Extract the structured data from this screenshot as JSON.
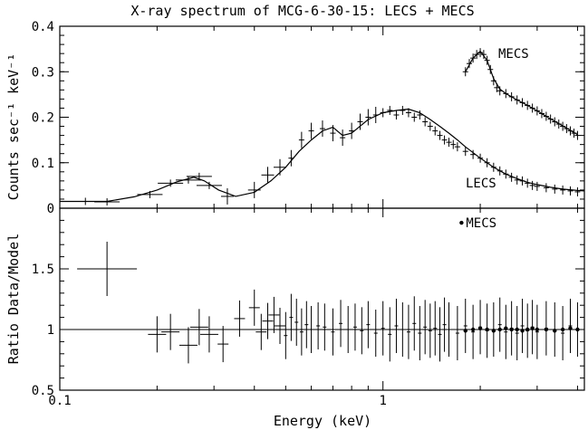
{
  "chart_data": [
    {
      "panel": "top",
      "type": "scatter",
      "title": "X-ray spectrum of MCG-6-30-15: LECS + MECS",
      "xlabel": "Energy (keV)",
      "ylabel": "Counts sec⁻¹ keV⁻¹",
      "xscale": "log",
      "xlim": [
        0.1,
        4.2
      ],
      "ylim": [
        0,
        0.4
      ],
      "xticks": [
        0.1,
        1
      ],
      "xtick_labels": [
        "0.1",
        "1"
      ],
      "yticks": [
        0,
        0.1,
        0.2,
        0.3,
        0.4
      ],
      "ytick_labels": [
        "0",
        "0.1",
        "0.2",
        "0.3",
        "0.4"
      ],
      "series": [
        {
          "name": "LECS",
          "label_text": "LECS",
          "x": [
            0.12,
            0.14,
            0.19,
            0.22,
            0.25,
            0.27,
            0.29,
            0.33,
            0.4,
            0.44,
            0.48,
            0.52,
            0.56,
            0.6,
            0.65,
            0.7,
            0.75,
            0.8,
            0.85,
            0.9,
            0.95,
            1.0,
            1.05,
            1.1,
            1.15,
            1.2,
            1.25,
            1.3,
            1.35,
            1.4,
            1.45,
            1.5,
            1.55,
            1.6,
            1.65,
            1.7,
            1.8,
            1.9,
            2.0,
            2.1,
            2.2,
            2.3,
            2.4,
            2.5,
            2.6,
            2.7,
            2.8,
            2.9,
            3.0,
            3.2,
            3.4,
            3.6,
            3.8,
            4.0
          ],
          "y": [
            0.015,
            0.014,
            0.03,
            0.055,
            0.062,
            0.07,
            0.05,
            0.026,
            0.04,
            0.073,
            0.09,
            0.11,
            0.15,
            0.17,
            0.175,
            0.165,
            0.155,
            0.17,
            0.19,
            0.2,
            0.205,
            0.21,
            0.215,
            0.205,
            0.215,
            0.21,
            0.2,
            0.205,
            0.19,
            0.18,
            0.17,
            0.16,
            0.15,
            0.145,
            0.14,
            0.135,
            0.125,
            0.118,
            0.11,
            0.1,
            0.09,
            0.082,
            0.075,
            0.068,
            0.062,
            0.06,
            0.055,
            0.05,
            0.048,
            0.045,
            0.042,
            0.04,
            0.038,
            0.036
          ],
          "model_x": [
            0.1,
            0.14,
            0.17,
            0.2,
            0.23,
            0.26,
            0.28,
            0.31,
            0.35,
            0.4,
            0.45,
            0.5,
            0.55,
            0.6,
            0.65,
            0.7,
            0.75,
            0.8,
            0.9,
            1.0,
            1.1,
            1.2,
            1.3,
            1.4,
            1.5,
            1.6,
            1.7,
            1.8,
            2.0,
            2.2,
            2.4,
            2.6,
            2.8,
            3.0,
            3.3,
            3.6,
            4.0,
            4.2
          ],
          "model_y": [
            0.015,
            0.015,
            0.025,
            0.04,
            0.058,
            0.068,
            0.06,
            0.04,
            0.026,
            0.035,
            0.06,
            0.09,
            0.125,
            0.15,
            0.17,
            0.178,
            0.16,
            0.165,
            0.195,
            0.21,
            0.215,
            0.218,
            0.21,
            0.195,
            0.18,
            0.165,
            0.15,
            0.135,
            0.11,
            0.09,
            0.075,
            0.065,
            0.057,
            0.052,
            0.046,
            0.042,
            0.039,
            0.038
          ]
        },
        {
          "name": "MECS",
          "label_text": "MECS",
          "x": [
            1.8,
            1.85,
            1.9,
            1.95,
            2.0,
            2.05,
            2.1,
            2.15,
            2.2,
            2.25,
            2.3,
            2.4,
            2.5,
            2.6,
            2.7,
            2.8,
            2.9,
            3.0,
            3.1,
            3.2,
            3.3,
            3.4,
            3.5,
            3.6,
            3.7,
            3.8,
            3.9,
            4.0
          ],
          "y": [
            0.3,
            0.318,
            0.33,
            0.338,
            0.342,
            0.338,
            0.325,
            0.305,
            0.28,
            0.265,
            0.258,
            0.252,
            0.245,
            0.238,
            0.232,
            0.226,
            0.22,
            0.214,
            0.208,
            0.202,
            0.196,
            0.19,
            0.185,
            0.18,
            0.175,
            0.17,
            0.165,
            0.16
          ],
          "model_x": [
            1.8,
            1.9,
            2.0,
            2.1,
            2.2,
            2.3,
            2.4,
            2.6,
            2.8,
            3.0,
            3.2,
            3.4,
            3.6,
            3.8,
            4.0
          ],
          "model_y": [
            0.3,
            0.33,
            0.345,
            0.325,
            0.285,
            0.262,
            0.252,
            0.238,
            0.226,
            0.214,
            0.202,
            0.191,
            0.181,
            0.171,
            0.162
          ]
        }
      ]
    },
    {
      "panel": "bottom",
      "type": "scatter",
      "xlabel": "Energy (keV)",
      "ylabel": "Ratio Data/Model",
      "xscale": "log",
      "xlim": [
        0.1,
        4.2
      ],
      "ylim": [
        0.5,
        2.0
      ],
      "xticks": [
        0.1,
        1
      ],
      "xtick_labels": [
        "0.1",
        "1"
      ],
      "yticks": [
        0.5,
        1.0,
        1.5
      ],
      "ytick_labels": [
        "0.5",
        "1",
        "1.5"
      ],
      "reference_line": 1,
      "legend": {
        "label": "MECS",
        "marker": "dot",
        "x": 1.75,
        "y": 1.85
      },
      "series": [
        {
          "name": "LECS",
          "x": [
            0.14,
            0.2,
            0.22,
            0.25,
            0.27,
            0.29,
            0.32,
            0.36,
            0.4,
            0.42,
            0.44,
            0.46,
            0.48,
            0.5,
            0.52,
            0.54,
            0.56,
            0.58,
            0.6,
            0.63,
            0.66,
            0.7,
            0.74,
            0.78,
            0.82,
            0.86,
            0.9,
            0.95,
            1.0,
            1.05,
            1.1,
            1.15,
            1.2,
            1.25,
            1.3,
            1.35,
            1.4,
            1.45,
            1.5,
            1.55,
            1.6,
            1.7,
            1.8,
            1.9,
            2.0,
            2.1,
            2.2,
            2.3,
            2.4,
            2.5,
            2.6,
            2.7,
            2.8,
            2.9,
            3.0,
            3.2,
            3.4,
            3.6,
            3.8,
            4.0
          ],
          "y": [
            1.5,
            0.96,
            0.98,
            0.87,
            1.02,
            0.96,
            0.88,
            1.09,
            1.18,
            0.98,
            1.07,
            1.12,
            1.03,
            0.95,
            1.1,
            1.06,
            0.98,
            1.04,
            1.0,
            1.03,
            1.02,
            0.98,
            1.05,
            1.0,
            1.02,
            0.99,
            1.04,
            0.97,
            1.01,
            0.96,
            1.03,
            1.0,
            0.98,
            1.05,
            0.97,
            1.02,
            0.99,
            1.01,
            0.96,
            1.04,
            1.0,
            0.97,
            1.03,
            0.98,
            1.02,
            0.99,
            1.0,
            1.04,
            0.98,
            1.01,
            0.97,
            1.03,
            0.99,
            1.02,
            0.98,
            1.01,
            1.0,
            0.97,
            1.03,
            1.0
          ]
        },
        {
          "name": "MECS",
          "x": [
            1.8,
            1.9,
            2.0,
            2.1,
            2.2,
            2.3,
            2.4,
            2.5,
            2.6,
            2.7,
            2.8,
            2.9,
            3.0,
            3.2,
            3.4,
            3.6,
            3.8,
            4.0
          ],
          "y": [
            0.99,
            1.0,
            1.01,
            1.0,
            0.99,
            1.0,
            1.01,
            1.0,
            1.0,
            0.99,
            1.0,
            1.01,
            1.0,
            1.0,
            0.99,
            1.0,
            1.01,
            1.0
          ]
        }
      ]
    }
  ]
}
